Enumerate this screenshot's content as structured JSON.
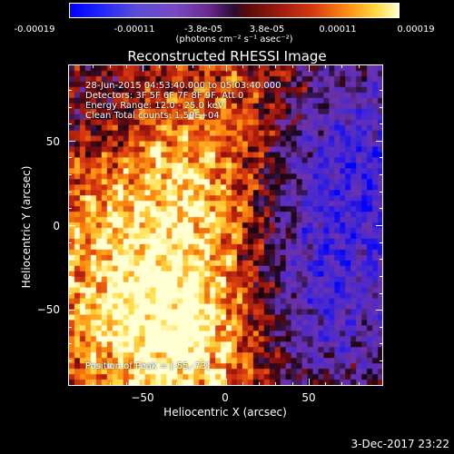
{
  "colorbar": {
    "ticks": [
      "-0.00019",
      "-0.00011",
      "-3.8e-05",
      "3.8e-05",
      "0.00011",
      "0.00019"
    ],
    "units": "(photons cm⁻² s⁻¹ asec⁻²)",
    "range": [
      -0.00019,
      0.00019
    ],
    "colormap": [
      "#0000ff",
      "#6a2a90",
      "#000000",
      "#d83a10",
      "#ffd840",
      "#ffffc8"
    ]
  },
  "info": {
    "time_range": "28-Jun-2015 04:53:40.000 to 05:03:40.000",
    "detectors": "Detectors: 3F 5F 6F 7F 8F 9F, Att 0",
    "energy": "Energy Range: 12.0 - 25.0 keV",
    "clean": "Clean     Total counts: 1.50E+04",
    "peak": "Position of Peak = [-55,-73]"
  },
  "footer": {
    "date": "3-Dec-2017 23:22"
  },
  "chart_data": {
    "type": "heatmap",
    "title": "Reconstructed RHESSI Image",
    "xlabel": "Heliocentric X (arcsec)",
    "ylabel": "Heliocentric Y (arcsec)",
    "xlim": [
      -95,
      95
    ],
    "ylim": [
      -95,
      95
    ],
    "xticks": [
      -50,
      0,
      50
    ],
    "yticks": [
      50,
      0,
      -50
    ],
    "xtick_labels": [
      "−50",
      "0",
      "50"
    ],
    "ytick_labels": [
      "50",
      "0",
      "−50"
    ],
    "peak": [
      -55,
      -73
    ],
    "legend": "none",
    "grid": false
  }
}
